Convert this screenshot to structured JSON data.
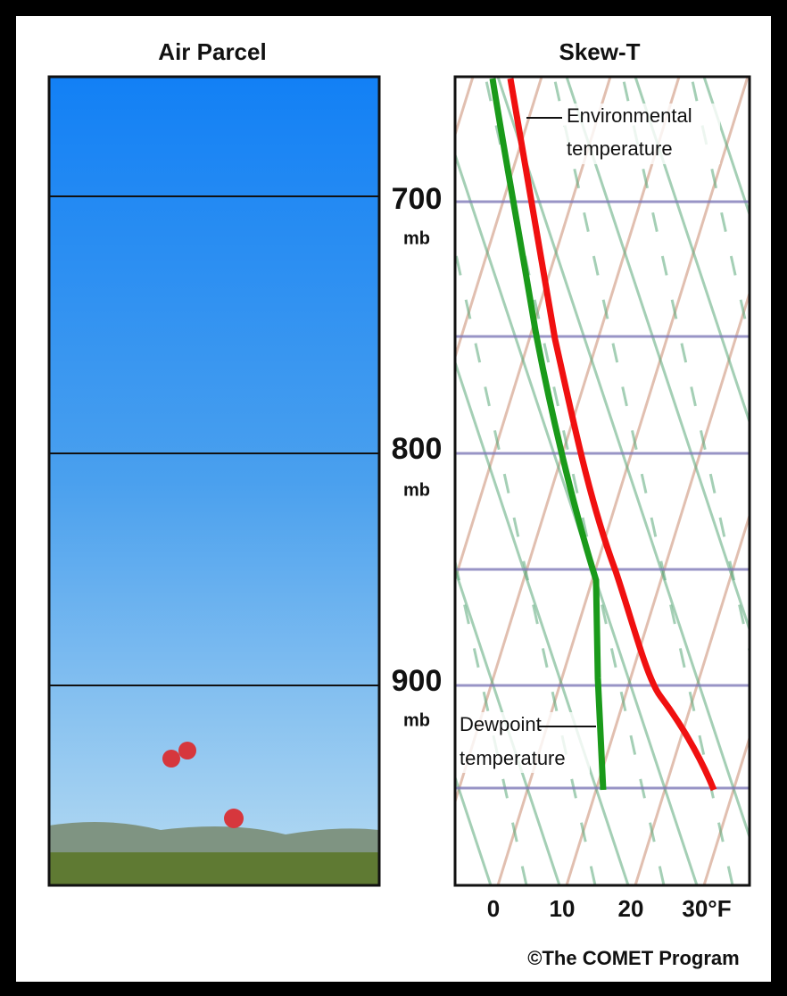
{
  "left_panel": {
    "title": "Air Parcel"
  },
  "right_panel": {
    "title": "Skew-T",
    "pressure_labels": [
      {
        "value": "700",
        "unit": "mb"
      },
      {
        "value": "800",
        "unit": "mb"
      },
      {
        "value": "900",
        "unit": "mb"
      }
    ],
    "x_labels": [
      "0",
      "10",
      "20",
      "30°F"
    ],
    "environmental_label": [
      "Environmental",
      "temperature"
    ],
    "dewpoint_label": [
      "Dewpoint",
      "temperature"
    ]
  },
  "credit": "©The COMET Program"
}
